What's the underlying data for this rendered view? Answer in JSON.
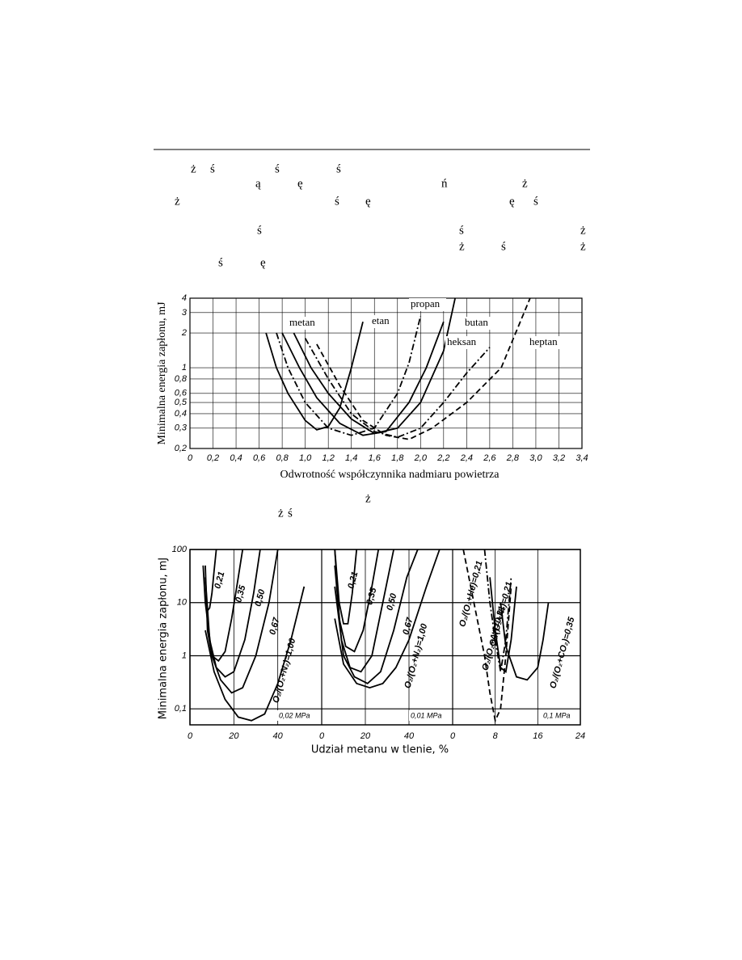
{
  "text_lines": [
    [
      "ż",
      "ś",
      "ś",
      "ś"
    ],
    [
      "ą",
      "ę",
      "ń",
      "ż"
    ],
    [
      "ż",
      "ś",
      "ę",
      "ę",
      "ś"
    ],
    [
      "ś",
      "ś",
      "ż"
    ],
    [
      "ż",
      "ś",
      "ż"
    ],
    [
      "ś",
      "ę"
    ],
    [
      "ż"
    ],
    [
      "ż",
      "ś"
    ]
  ],
  "chart_data": [
    {
      "type": "line",
      "log_y": true,
      "grid": true,
      "xlabel": "Odwrotność współczynnika nadmiaru powietrza",
      "ylabel": "Minimalna energia zapłonu, mJ",
      "xlim": [
        0,
        3.4
      ],
      "ylim": [
        0.2,
        4
      ],
      "xticks": [
        0,
        {
          "value": 0.2,
          "label": "0,2"
        },
        {
          "value": 0.4,
          "label": "0,4"
        },
        {
          "value": 0.6,
          "label": "0,6"
        },
        {
          "value": 0.8,
          "label": "0,8"
        },
        {
          "value": 1.0,
          "label": "1,0"
        },
        {
          "value": 1.2,
          "label": "1,2"
        },
        {
          "value": 1.4,
          "label": "1,4"
        },
        {
          "value": 1.6,
          "label": "1,6"
        },
        {
          "value": 1.8,
          "label": "1,8"
        },
        {
          "value": 2.0,
          "label": "2,0"
        },
        {
          "value": 2.2,
          "label": "2,2"
        },
        {
          "value": 2.4,
          "label": "2,4"
        },
        {
          "value": 2.6,
          "label": "2,6"
        },
        {
          "value": 2.8,
          "label": "2,8"
        },
        {
          "value": 3.0,
          "label": "3,0"
        },
        {
          "value": 3.2,
          "label": "3,2"
        },
        {
          "value": 3.4,
          "label": "3,4"
        }
      ],
      "yticks": [
        {
          "value": 0.2,
          "label": "0,2"
        },
        {
          "value": 0.3,
          "label": "0,3"
        },
        {
          "value": 0.4,
          "label": "0,4"
        },
        {
          "value": 0.5,
          "label": "0,5"
        },
        {
          "value": 0.6,
          "label": "0,6"
        },
        {
          "value": 0.8,
          "label": "0,8"
        },
        1,
        2,
        3,
        4
      ],
      "series": [
        {
          "name": "metan",
          "color": "#000000",
          "style": "solid",
          "x": [
            0.66,
            0.75,
            0.85,
            1.0,
            1.1,
            1.2,
            1.3,
            1.4,
            1.5
          ],
          "values": [
            2,
            1,
            0.6,
            0.35,
            0.29,
            0.31,
            0.45,
            1.0,
            2.5
          ]
        },
        {
          "name": "etan",
          "color": "#000000",
          "style": "dashdot",
          "x": [
            0.75,
            0.85,
            1.0,
            1.2,
            1.4,
            1.6,
            1.8,
            1.9,
            2.0
          ],
          "values": [
            2,
            1,
            0.5,
            0.3,
            0.26,
            0.3,
            0.6,
            1.1,
            2.8
          ]
        },
        {
          "name": "propan",
          "color": "#000000",
          "style": "solid",
          "x": [
            0.8,
            0.95,
            1.1,
            1.3,
            1.5,
            1.7,
            1.9,
            2.05,
            2.2
          ],
          "values": [
            2,
            1,
            0.55,
            0.33,
            0.26,
            0.28,
            0.5,
            1.0,
            2.5
          ]
        },
        {
          "name": "butan",
          "color": "#000000",
          "style": "solid",
          "x": [
            0.9,
            1.05,
            1.2,
            1.4,
            1.6,
            1.8,
            2.0,
            2.2,
            2.3
          ],
          "values": [
            2,
            1,
            0.6,
            0.36,
            0.27,
            0.3,
            0.5,
            1.4,
            4
          ]
        },
        {
          "name": "heksan",
          "color": "#000000",
          "style": "dashdot",
          "x": [
            1.0,
            1.2,
            1.4,
            1.6,
            1.8,
            2.0,
            2.2,
            2.4,
            2.6
          ],
          "values": [
            1.8,
            0.8,
            0.4,
            0.28,
            0.25,
            0.3,
            0.5,
            0.9,
            1.5
          ]
        },
        {
          "name": "heptan",
          "color": "#000000",
          "style": "dashed",
          "x": [
            1.1,
            1.3,
            1.5,
            1.7,
            1.9,
            2.1,
            2.4,
            2.7,
            2.95
          ],
          "values": [
            1.6,
            0.7,
            0.35,
            0.26,
            0.24,
            0.3,
            0.5,
            1.0,
            4
          ]
        }
      ]
    },
    {
      "type": "panels",
      "log_y": true,
      "grid": true,
      "xlabel": "Udział metanu w tlenie, %",
      "ylabel": "Minimalna energia zapłonu, mJ",
      "ylim": [
        0.05,
        100
      ],
      "yticks": [
        {
          "value": 0.1,
          "label": "0,1"
        },
        1,
        10,
        100
      ],
      "panels": [
        {
          "annotation": "0,02 MPa",
          "xlim": [
            0,
            60
          ],
          "xticks": [
            0,
            20,
            40
          ],
          "series": [
            {
              "name": "0,21",
              "color": "#000000",
              "style": "solid",
              "x": [
                6,
                7,
                8,
                9,
                10,
                11,
                12
              ],
              "values": [
                50,
                10,
                7,
                8,
                15,
                40,
                100
              ]
            },
            {
              "name": "0,35",
              "color": "#000000",
              "style": "solid",
              "x": [
                7,
                8,
                10,
                13,
                16,
                19,
                22,
                24
              ],
              "values": [
                50,
                3,
                1,
                0.8,
                1.2,
                5,
                30,
                100
              ]
            },
            {
              "name": "0,50",
              "color": "#000000",
              "style": "solid",
              "x": [
                7,
                9,
                12,
                16,
                20,
                25,
                29,
                32
              ],
              "values": [
                30,
                2,
                0.6,
                0.4,
                0.5,
                2,
                15,
                100
              ]
            },
            {
              "name": "0,67",
              "color": "#000000",
              "style": "solid",
              "x": [
                7,
                10,
                14,
                19,
                24,
                30,
                36,
                40
              ],
              "values": [
                10,
                1,
                0.35,
                0.2,
                0.25,
                1,
                10,
                100
              ]
            },
            {
              "name": "O₂/(O₂+N₂)=1,00",
              "color": "#000000",
              "style": "solid",
              "x": [
                7,
                11,
                16,
                22,
                28,
                34,
                40,
                46,
                52
              ],
              "values": [
                3,
                0.5,
                0.15,
                0.07,
                0.06,
                0.08,
                0.3,
                2,
                20
              ]
            }
          ]
        },
        {
          "annotation": "0,01 MPa",
          "xlim": [
            0,
            60
          ],
          "xticks": [
            0,
            20,
            40
          ],
          "series": [
            {
              "name": "0,21",
              "color": "#000000",
              "style": "solid",
              "x": [
                6,
                8,
                10,
                12,
                14,
                16
              ],
              "values": [
                100,
                10,
                4,
                4,
                15,
                100
              ]
            },
            {
              "name": "0,35",
              "color": "#000000",
              "style": "solid",
              "x": [
                6,
                8,
                11,
                15,
                19,
                23,
                26
              ],
              "values": [
                100,
                5,
                1.5,
                1.2,
                3,
                20,
                100
              ]
            },
            {
              "name": "0,50",
              "color": "#000000",
              "style": "solid",
              "x": [
                6,
                9,
                13,
                18,
                23,
                28,
                33
              ],
              "values": [
                50,
                2,
                0.6,
                0.5,
                1,
                10,
                100
              ]
            },
            {
              "name": "0,67",
              "color": "#000000",
              "style": "solid",
              "x": [
                6,
                10,
                15,
                21,
                27,
                33,
                39,
                44
              ],
              "values": [
                20,
                1,
                0.4,
                0.3,
                0.5,
                3,
                30,
                100
              ]
            },
            {
              "name": "O₂/(O₂+N₂)=1,00",
              "color": "#000000",
              "style": "solid",
              "x": [
                6,
                10,
                16,
                22,
                28,
                34,
                40,
                48,
                54
              ],
              "values": [
                5,
                0.7,
                0.3,
                0.25,
                0.3,
                0.6,
                2,
                20,
                100
              ]
            }
          ]
        },
        {
          "annotation": "0,1 MPa",
          "xlim": [
            0,
            24
          ],
          "xticks": [
            0,
            8,
            16,
            24
          ],
          "series": [
            {
              "name": "O₂/(O₂+He)=0,21",
              "color": "#000000",
              "style": "dashed",
              "x": [
                2,
                4,
                6,
                7,
                8,
                9,
                10,
                11
              ],
              "values": [
                100,
                10,
                1,
                0.2,
                0.06,
                0.1,
                1,
                20
              ]
            },
            {
              "name": "O₂/(O₂+N₂)=0,21",
              "color": "#000000",
              "style": "dashdot",
              "x": [
                6,
                7,
                8,
                9,
                10,
                11
              ],
              "values": [
                100,
                10,
                2,
                0.5,
                2,
                30
              ]
            },
            {
              "name": "O₂/(O₂+Ar)=0,21",
              "color": "#000000",
              "style": "solid",
              "x": [
                7,
                8,
                9,
                10,
                11,
                12
              ],
              "values": [
                30,
                3,
                0.6,
                0.5,
                2,
                20
              ]
            },
            {
              "name": "O₂/(O₂+CO₂)=0,35",
              "color": "#000000",
              "style": "solid",
              "x": [
                9,
                10,
                12,
                14,
                16,
                17,
                18
              ],
              "values": [
                10,
                1.5,
                0.4,
                0.35,
                0.6,
                2,
                10
              ]
            }
          ]
        }
      ]
    }
  ]
}
